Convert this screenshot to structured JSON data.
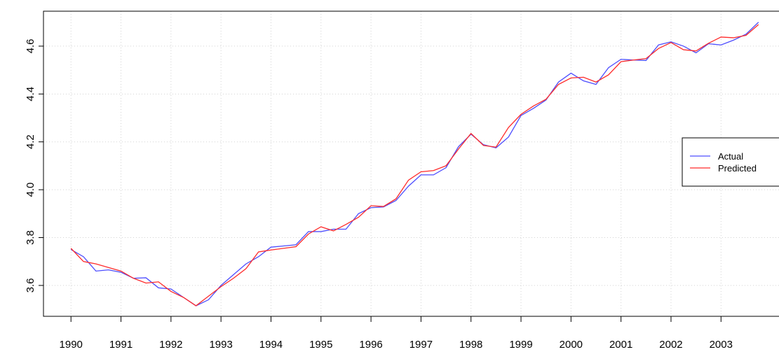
{
  "chart_data": {
    "type": "line",
    "x": [
      1990,
      1990.25,
      1990.5,
      1990.75,
      1991,
      1991.25,
      1991.5,
      1991.75,
      1992,
      1992.25,
      1992.5,
      1992.75,
      1993,
      1993.25,
      1993.5,
      1993.75,
      1994,
      1994.25,
      1994.5,
      1994.75,
      1995,
      1995.25,
      1995.5,
      1995.75,
      1996,
      1996.25,
      1996.5,
      1996.75,
      1997,
      1997.25,
      1997.5,
      1997.75,
      1998,
      1998.25,
      1998.5,
      1998.75,
      1999,
      1999.25,
      1999.5,
      1999.75,
      2000,
      2000.25,
      2000.5,
      2000.75,
      2001,
      2001.25,
      2001.5,
      2001.75,
      2002,
      2002.25,
      2002.5,
      2002.75,
      2003,
      2003.25,
      2003.5,
      2003.75
    ],
    "series": [
      {
        "name": "Actual",
        "color": "#4d4dff",
        "values": [
          3.75,
          3.72,
          3.66,
          3.665,
          3.655,
          3.63,
          3.632,
          3.59,
          3.585,
          3.55,
          3.515,
          3.54,
          3.6,
          3.645,
          3.69,
          3.72,
          3.76,
          3.765,
          3.77,
          3.825,
          3.825,
          3.835,
          3.835,
          3.9,
          3.925,
          3.928,
          3.955,
          4.015,
          4.062,
          4.062,
          4.092,
          4.18,
          4.232,
          4.188,
          4.175,
          4.22,
          4.31,
          4.34,
          4.375,
          4.45,
          4.487,
          4.455,
          4.44,
          4.51,
          4.545,
          4.542,
          4.54,
          4.605,
          4.618,
          4.6,
          4.572,
          4.61,
          4.605,
          4.625,
          4.65,
          4.7
        ]
      },
      {
        "name": "Predicted",
        "color": "#ff2b2b",
        "values": [
          3.755,
          3.7,
          3.69,
          3.675,
          3.66,
          3.63,
          3.61,
          3.615,
          3.575,
          3.55,
          3.515,
          3.555,
          3.595,
          3.63,
          3.67,
          3.74,
          3.748,
          3.755,
          3.762,
          3.815,
          3.845,
          3.828,
          3.855,
          3.885,
          3.933,
          3.93,
          3.962,
          4.04,
          4.075,
          4.08,
          4.1,
          4.17,
          4.235,
          4.185,
          4.178,
          4.26,
          4.315,
          4.35,
          4.378,
          4.44,
          4.467,
          4.47,
          4.45,
          4.48,
          4.535,
          4.542,
          4.548,
          4.59,
          4.615,
          4.585,
          4.58,
          4.612,
          4.638,
          4.635,
          4.645,
          4.69
        ]
      }
    ],
    "xlim": [
      1989.45,
      2004.3
    ],
    "xticks": [
      1990,
      1991,
      1992,
      1993,
      1994,
      1995,
      1996,
      1997,
      1998,
      1999,
      2000,
      2001,
      2002,
      2003
    ],
    "ylim": [
      3.471,
      4.746
    ],
    "yticks": [
      3.6,
      3.8,
      {
        "value": 4,
        "label": "4.0"
      },
      4.2,
      4.4,
      4.6
    ],
    "grid": true,
    "legend": "right"
  }
}
